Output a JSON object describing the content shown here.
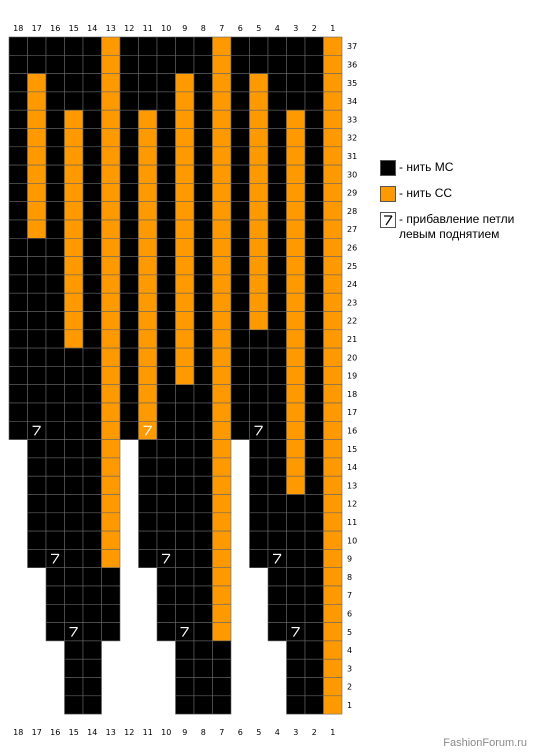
{
  "chart": {
    "columns": 18,
    "rows": 37,
    "column_labels": [
      "18",
      "17",
      "16",
      "15",
      "14",
      "13",
      "12",
      "11",
      "10",
      "9",
      "8",
      "7",
      "6",
      "5",
      "4",
      "3",
      "2",
      "1"
    ],
    "row_labels": [
      "37",
      "36",
      "35",
      "34",
      "33",
      "32",
      "31",
      "30",
      "29",
      "28",
      "27",
      "26",
      "25",
      "24",
      "23",
      "22",
      "21",
      "20",
      "19",
      "18",
      "17",
      "16",
      "15",
      "14",
      "13",
      "12",
      "11",
      "10",
      "9",
      "8",
      "7",
      "6",
      "5",
      "4",
      "3",
      "2",
      "1"
    ],
    "colors": {
      "mc": "#000000",
      "cc": "#ff9900",
      "empty": "#ffffff",
      "gridline": "#666666",
      "increase_mark": "#ffffff"
    },
    "cell_map": [
      "BBBBBOBBBBBOBBBBBO",
      "BBBBBOBBBBBOBBBBBO",
      "BOBBBOBBBOBOBOBBBO",
      "BOBBBOBBBOBOBOBBBO",
      "BOBOBOBOBOBOBOBOBO",
      "BOBOBOBOBOBOBOBOBO",
      "BOBOBOBOBOBOBOBOBO",
      "BOBOBOBOBOBOBOBOBO",
      "BOBOBOBOBOBOBOBOBO",
      "BOBOBOBOBOBOBOBOBO",
      "BOBOBOBOBOBOBOBOBO",
      "BBBOBOBOBOBOBOBOBO",
      "BBBOBOBOBOBOBOBOBO",
      "BBBOBOBOBOBOBOBOBO",
      "BBBOBOBOBOBOBOBOBO",
      "BBBOBOBOBOBOBOBOBO",
      "BBBOBOBOBOBOBBBOBO",
      "BBBBBOBOBOBOBBBOBO",
      "BBBBBOBOBOBOBBBOBO",
      "BBBBBOBOBBBOBBBOBO",
      "BBBBBOBOBBBOBBBOBO",
      "BBBBBOBOBBBOBBBOBO",
      ".BBBBO.BBBBO.BBOBO",
      ".BBBBO.BBBBO.BBOBO",
      ".BBBBO.BBBBO.BBOBO",
      ".BBBBO.BBBBO.BBBBO",
      ".BBBBO.BBBBO.BBBBO",
      ".BBBBO.BBBBO.BBBBO",
      ".BBBBO.BBBBO.BBBBO",
      "..BBBB..BBBO..BBBO",
      "..BBBB..BBBO..BBBO",
      "..BBBB..BBBO..BBBO",
      "..BBBB..BBBO..BBBO",
      "...BB....BBB...BBO",
      "...BB....BBB...BBO",
      "...BB....BBB...BBO",
      "...BB....BBB...BBO"
    ],
    "increase_marks": [
      {
        "row": 16,
        "col": 17
      },
      {
        "row": 16,
        "col": 11
      },
      {
        "row": 16,
        "col": 5
      },
      {
        "row": 9,
        "col": 16
      },
      {
        "row": 9,
        "col": 10
      },
      {
        "row": 9,
        "col": 4
      },
      {
        "row": 5,
        "col": 15
      },
      {
        "row": 5,
        "col": 9
      },
      {
        "row": 5,
        "col": 3
      }
    ]
  },
  "legend": {
    "mc": {
      "label": "- нить МС",
      "icon": "black-square"
    },
    "cc": {
      "label": "- нить СС",
      "icon": "orange-square"
    },
    "inc_line1": "- прибавление петли",
    "inc_line2": "левым поднятием",
    "inc_icon": "left-lifted-increase-symbol"
  },
  "watermark": "FashionForum.ru"
}
